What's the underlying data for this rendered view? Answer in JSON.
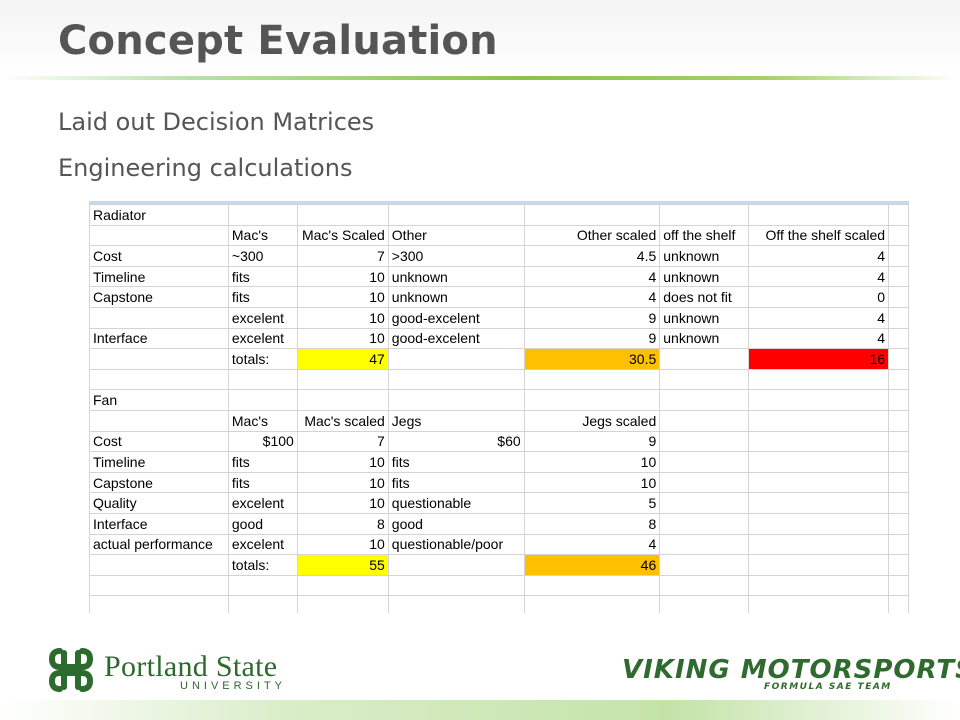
{
  "slide": {
    "title": "Concept Evaluation",
    "bullets": [
      "Laid out Decision Matrices",
      "Engineering calculations"
    ]
  },
  "colors": {
    "accent_green": "#8bc34a",
    "title_gray": "#555555",
    "highlight_yellow": "#ffff00",
    "highlight_orange": "#ffc000",
    "highlight_red": "#ff0000"
  },
  "sheet": {
    "rows": [
      [
        "Radiator",
        "",
        "",
        "",
        "",
        "",
        "",
        ""
      ],
      [
        "",
        "Mac's",
        "Mac's Scaled",
        "Other",
        "Other scaled",
        "off the shelf",
        "Off the shelf scaled",
        ""
      ],
      [
        "Cost",
        "~300",
        "7",
        ">300",
        "4.5",
        "unknown",
        "4",
        ""
      ],
      [
        "Timeline",
        "fits",
        "10",
        "unknown",
        "4",
        "unknown",
        "4",
        ""
      ],
      [
        "Capstone",
        "fits",
        "10",
        "unknown",
        "4",
        "does not fit",
        "0",
        ""
      ],
      [
        "",
        "excelent",
        "10",
        "good-excelent",
        "9",
        "unknown",
        "4",
        ""
      ],
      [
        "Interface",
        "excelent",
        "10",
        "good-excelent",
        "9",
        "unknown",
        "4",
        ""
      ],
      [
        "",
        "totals:",
        "47",
        "",
        "30.5",
        "",
        "16",
        ""
      ],
      [
        "",
        "",
        "",
        "",
        "",
        "",
        "",
        ""
      ],
      [
        "Fan",
        "",
        "",
        "",
        "",
        "",
        "",
        ""
      ],
      [
        "",
        "Mac's",
        "Mac's scaled",
        "Jegs",
        "Jegs scaled",
        "",
        "",
        ""
      ],
      [
        "Cost",
        "$100",
        "7",
        "$60",
        "9",
        "",
        "",
        ""
      ],
      [
        "Timeline",
        "fits",
        "10",
        "fits",
        "10",
        "",
        "",
        ""
      ],
      [
        "Capstone",
        "fits",
        "10",
        "fits",
        "10",
        "",
        "",
        ""
      ],
      [
        "Quality",
        "excelent",
        "10",
        "questionable",
        "5",
        "",
        "",
        ""
      ],
      [
        "Interface",
        "good",
        "8",
        "good",
        "8",
        "",
        "",
        ""
      ],
      [
        "actual performance",
        "excelent",
        "10",
        "questionable/poor",
        "4",
        "",
        "",
        ""
      ],
      [
        "",
        "totals:",
        "55",
        "",
        "46",
        "",
        "",
        ""
      ],
      [
        "",
        "",
        "",
        "",
        "",
        "",
        "",
        ""
      ],
      [
        "",
        "",
        "",
        "",
        "",
        "",
        "",
        ""
      ]
    ]
  },
  "logos": {
    "psu_name": "Portland State",
    "psu_sub": "UNIVERSITY",
    "viking_main": "VIKING MOTORSPORTS",
    "viking_sub": "FORMULA SAE TEAM"
  }
}
